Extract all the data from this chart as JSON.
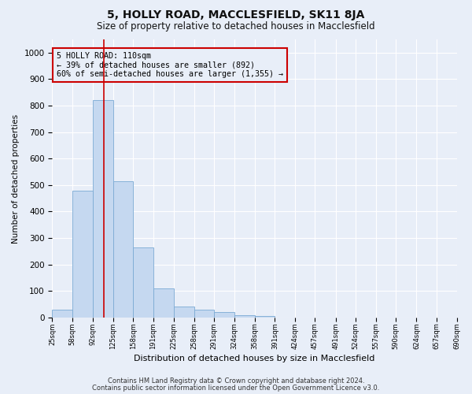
{
  "title": "5, HOLLY ROAD, MACCLESFIELD, SK11 8JA",
  "subtitle": "Size of property relative to detached houses in Macclesfield",
  "xlabel": "Distribution of detached houses by size in Macclesfield",
  "ylabel": "Number of detached properties",
  "bar_color": "#c5d8f0",
  "bar_edge_color": "#7baad4",
  "vline_color": "#cc0000",
  "vline_x": 110,
  "annotation_lines": [
    "5 HOLLY ROAD: 110sqm",
    "← 39% of detached houses are smaller (892)",
    "60% of semi-detached houses are larger (1,355) →"
  ],
  "bin_edges": [
    25,
    58,
    92,
    125,
    158,
    191,
    225,
    258,
    291,
    324,
    358,
    391,
    424,
    457,
    491,
    524,
    557,
    590,
    624,
    657,
    690
  ],
  "bar_heights": [
    30,
    480,
    820,
    515,
    265,
    110,
    40,
    30,
    20,
    10,
    5,
    0,
    0,
    0,
    0,
    0,
    0,
    0,
    0,
    0
  ],
  "ylim": [
    0,
    1050
  ],
  "yticks": [
    0,
    100,
    200,
    300,
    400,
    500,
    600,
    700,
    800,
    900,
    1000
  ],
  "footnote1": "Contains HM Land Registry data © Crown copyright and database right 2024.",
  "footnote2": "Contains public sector information licensed under the Open Government Licence v3.0.",
  "background_color": "#e8eef8",
  "grid_color": "#ffffff"
}
